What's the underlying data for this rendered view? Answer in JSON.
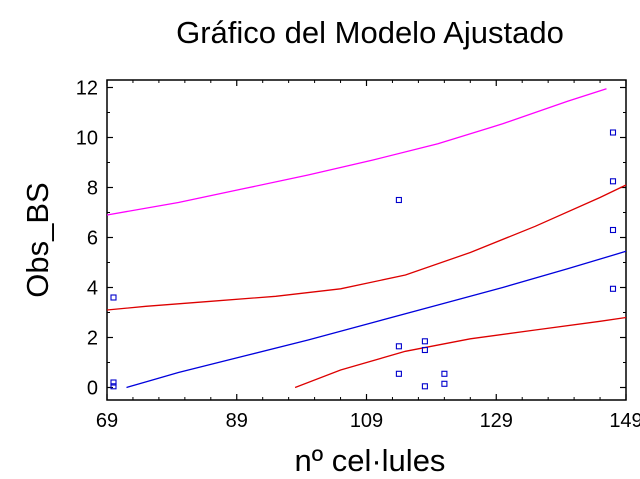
{
  "chart_data": {
    "type": "scatter",
    "title": "Gráfico del Modelo Ajustado",
    "xlabel": "nº cel·lules",
    "ylabel": "Obs_BS",
    "xlim": [
      69,
      149
    ],
    "ylim": [
      -0.5,
      12.3
    ],
    "xticks": [
      "69",
      "89",
      "109",
      "129",
      "149"
    ],
    "yticks": [
      "0",
      "2",
      "4",
      "6",
      "8",
      "10",
      "12"
    ],
    "xtick_values": [
      69,
      89,
      109,
      129,
      149
    ],
    "ytick_values": [
      0,
      2,
      4,
      6,
      8,
      10,
      12
    ],
    "grid": false,
    "points": {
      "x": [
        70,
        70,
        70,
        114,
        114,
        114,
        118,
        118,
        118,
        121,
        121,
        147,
        147,
        147,
        147
      ],
      "y": [
        3.6,
        0.2,
        0.05,
        7.5,
        1.65,
        0.55,
        1.85,
        1.5,
        0.05,
        0.55,
        0.15,
        10.2,
        8.25,
        6.3,
        3.95
      ],
      "color": "#0000cc"
    },
    "lines": [
      {
        "color": "#0000dd",
        "x": [
          72,
          80,
          90,
          100,
          110,
          120,
          130,
          140,
          149
        ],
        "y": [
          0.0,
          0.6,
          1.25,
          1.9,
          2.6,
          3.3,
          4.0,
          4.75,
          5.45
        ]
      },
      {
        "color": "#dd0000",
        "x": [
          69,
          75,
          85,
          95,
          105,
          115,
          125,
          135,
          145,
          149
        ],
        "y": [
          3.1,
          3.25,
          3.45,
          3.65,
          3.95,
          4.5,
          5.4,
          6.45,
          7.6,
          8.1
        ]
      },
      {
        "color": "#dd0000",
        "x": [
          98,
          105,
          115,
          125,
          135,
          145,
          149
        ],
        "y": [
          0.0,
          0.7,
          1.45,
          1.95,
          2.3,
          2.65,
          2.8
        ]
      },
      {
        "color": "#ff00ff",
        "x": [
          69,
          80,
          90,
          100,
          110,
          120,
          130,
          140,
          146
        ],
        "y": [
          6.9,
          7.4,
          7.95,
          8.5,
          9.1,
          9.75,
          10.55,
          11.45,
          11.95
        ]
      }
    ]
  }
}
